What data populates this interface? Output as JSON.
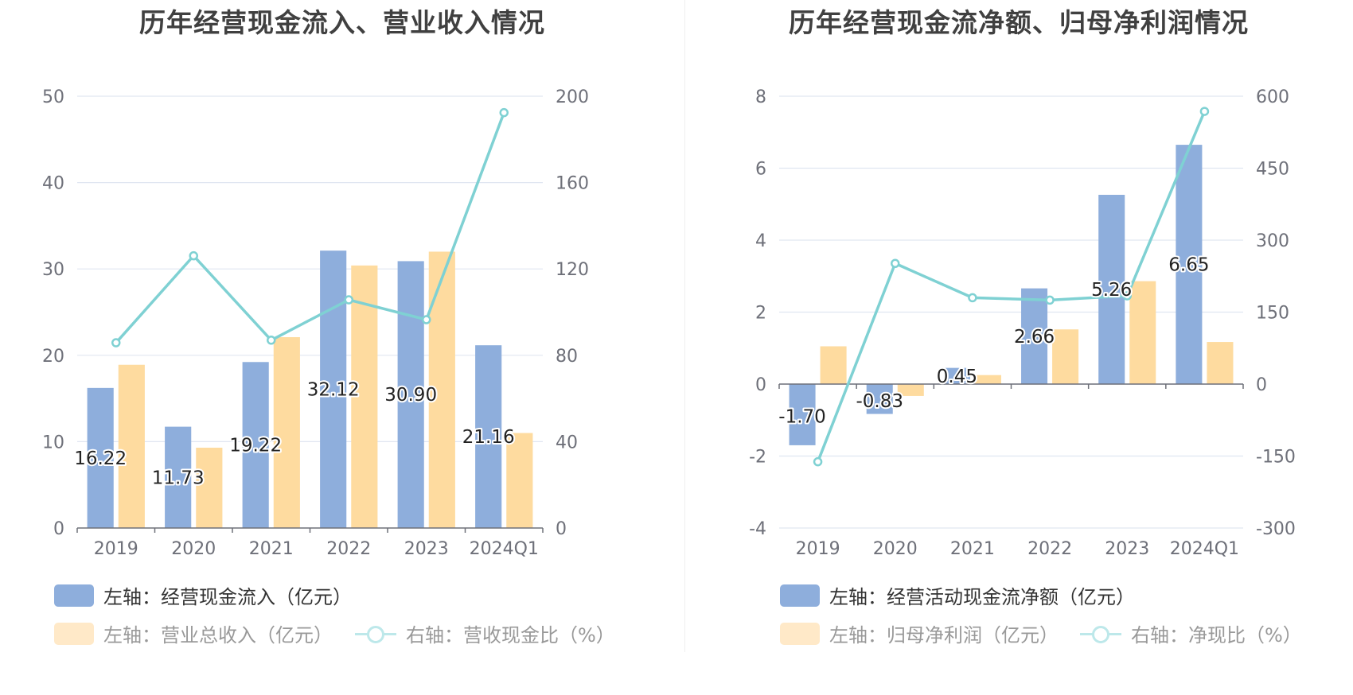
{
  "chart_data": [
    {
      "type": "bar",
      "title": "历年经营现金流入、营业收入情况",
      "categories": [
        "2019",
        "2020",
        "2021",
        "2022",
        "2023",
        "2024Q1"
      ],
      "left_axis": {
        "ylim": [
          0,
          50
        ],
        "ticks": [
          "0",
          "10",
          "20",
          "30",
          "40",
          "50"
        ]
      },
      "right_axis": {
        "ylim": [
          0,
          200
        ],
        "ticks": [
          "0",
          "40",
          "80",
          "120",
          "160",
          "200"
        ]
      },
      "series": [
        {
          "name": "左轴：经营现金流入（亿元）",
          "type": "bar",
          "axis": "left",
          "color": "#8eaedc",
          "values": [
            16.22,
            11.73,
            19.22,
            32.12,
            30.9,
            21.16
          ],
          "labels": [
            "16.22",
            "11.73",
            "19.22",
            "32.12",
            "30.90",
            "21.16"
          ]
        },
        {
          "name": "左轴：营业总收入（亿元）",
          "type": "bar",
          "axis": "left",
          "color": "#fedb9f",
          "values": [
            18.9,
            9.3,
            22.1,
            30.4,
            32.0,
            11.0
          ]
        },
        {
          "name": "右轴：营收现金比（%）",
          "type": "line",
          "axis": "right",
          "color": "#7fd1d3",
          "values": [
            85.8,
            126.1,
            87.0,
            105.7,
            96.5,
            192.4
          ]
        }
      ],
      "legend": [
        {
          "label": "左轴：经营现金流入（亿元）",
          "kind": "bar",
          "color": "#8eaedc",
          "dim": false
        },
        {
          "label": "左轴：营业总收入（亿元）",
          "kind": "bar",
          "color": "#ffe9c8",
          "dim": true
        },
        {
          "label": "右轴：营收现金比（%）",
          "kind": "line",
          "color": "#bde8ea",
          "dim": true
        }
      ]
    },
    {
      "type": "bar",
      "title": "历年经营现金流净额、归母净利润情况",
      "categories": [
        "2019",
        "2020",
        "2021",
        "2022",
        "2023",
        "2024Q1"
      ],
      "left_axis": {
        "ylim": [
          -4,
          8
        ],
        "ticks": [
          "-4",
          "-2",
          "0",
          "2",
          "4",
          "6",
          "8"
        ]
      },
      "right_axis": {
        "ylim": [
          -300,
          600
        ],
        "ticks": [
          "-300",
          "-150",
          "0",
          "150",
          "300",
          "450",
          "600"
        ]
      },
      "series": [
        {
          "name": "左轴：经营活动现金流净额（亿元）",
          "type": "bar",
          "axis": "left",
          "color": "#8eaedc",
          "values": [
            -1.7,
            -0.83,
            0.45,
            2.66,
            5.26,
            6.65
          ],
          "labels": [
            "-1.70",
            "-0.83",
            "0.45",
            "2.66",
            "5.26",
            "6.65"
          ]
        },
        {
          "name": "左轴：归母净利润（亿元）",
          "type": "bar",
          "axis": "left",
          "color": "#fedb9f",
          "values": [
            1.05,
            -0.33,
            0.25,
            1.52,
            2.86,
            1.17
          ]
        },
        {
          "name": "右轴：净现比（%）",
          "type": "line",
          "axis": "right",
          "color": "#7fd1d3",
          "values": [
            -161.9,
            251.5,
            180.0,
            175.0,
            183.9,
            568.4
          ]
        }
      ],
      "legend": [
        {
          "label": "左轴：经营活动现金流净额（亿元）",
          "kind": "bar",
          "color": "#8eaedc",
          "dim": false
        },
        {
          "label": "左轴：归母净利润（亿元）",
          "kind": "bar",
          "color": "#ffe9c8",
          "dim": true
        },
        {
          "label": "右轴：净现比（%）",
          "kind": "line",
          "color": "#bde8ea",
          "dim": true
        }
      ]
    }
  ]
}
